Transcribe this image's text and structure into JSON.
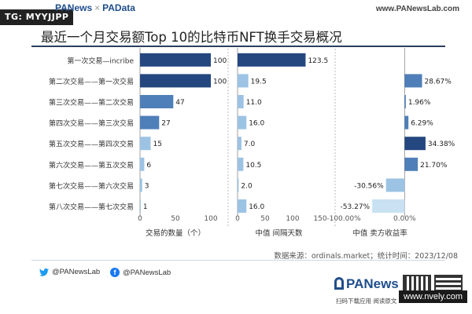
{
  "watermark_tag": "TG: MYYJJPP",
  "brand": {
    "left_a": "PANews",
    "left_sep": "×",
    "left_b": "PAData",
    "url": "www.PANewsLab.com"
  },
  "title": "最近一个月交易额Top 10的比特币NFT换手交易概况",
  "chart_data": {
    "type": "bar",
    "orientation": "horizontal",
    "categories": [
      "第一次交易—incribe",
      "第二次交易——第一次交易",
      "第三次交易——第二次交易",
      "第四次交易——第三次交易",
      "第五次交易——第四次交易",
      "第六次交易——第五次交易",
      "第七次交易——第六次交易",
      "第八次交易——第七次交易"
    ],
    "panels": [
      {
        "xlabel": "交易的数量（个）",
        "xlim": [
          0,
          100
        ],
        "ticks": [
          0,
          50,
          100
        ],
        "tick_labels": [
          "0",
          "50",
          "100"
        ],
        "values": [
          100,
          100,
          47,
          27,
          15,
          6,
          3,
          1
        ],
        "value_labels": [
          "100",
          "100",
          "47",
          "27",
          "15",
          "6",
          "3",
          "1"
        ]
      },
      {
        "xlabel": "中值 间隔天数",
        "xlim": [
          0,
          150
        ],
        "ticks": [
          0,
          50,
          100,
          150
        ],
        "tick_labels": [
          "0",
          "50",
          "100",
          "150"
        ],
        "values": [
          123.5,
          19.5,
          11.0,
          16.0,
          7.0,
          10.5,
          2.0,
          16.0
        ],
        "value_labels": [
          "123.5",
          "19.5",
          "11.0",
          "16.0",
          "7.0",
          "10.5",
          "2.0",
          "16.0"
        ]
      },
      {
        "xlabel": "中值 卖方收益率",
        "xlim": [
          -100,
          50
        ],
        "ticks": [
          -100,
          0
        ],
        "tick_labels": [
          "-100.00%",
          "0.00%"
        ],
        "values": [
          0,
          28.67,
          1.96,
          6.29,
          34.38,
          21.7,
          -30.56,
          -53.27
        ],
        "value_labels": [
          "",
          "28.67%",
          "1.96%",
          "6.29%",
          "34.38%",
          "21.70%",
          "-30.56%",
          "-53.27%"
        ]
      }
    ],
    "colors": {
      "dark": "#24477f",
      "mid": "#4f7fb8",
      "light": "#9cc3e4",
      "pale": "#c9e1f2"
    },
    "grid": false
  },
  "source": "数据来源：ordinals.market；统计时间：2023/12/08",
  "footer": {
    "twitter": "@PANewsLab",
    "facebook": "@PANewsLab",
    "logo": "PANews",
    "sub": "扫码下载应用  阅读原文",
    "site_watermark": "www.nvely.com",
    "twitter_icon": "twitter-bird-icon",
    "facebook_icon": "facebook-f-icon"
  }
}
